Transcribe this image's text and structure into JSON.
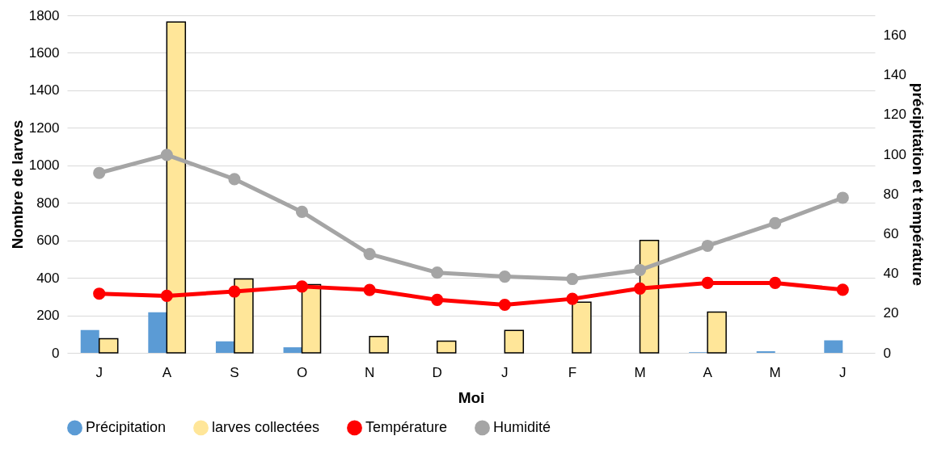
{
  "chart_data": {
    "type": "bar",
    "xlabel": "Moi",
    "ylabel": "Nombre de larves",
    "y2label": "précipitation et température",
    "categories": [
      "J",
      "A",
      "S",
      "O",
      "N",
      "D",
      "J",
      "F",
      "M",
      "A",
      "M",
      "J"
    ],
    "series": [
      {
        "name": "Précipitation",
        "axis": "y2",
        "color": "#5b9bd5",
        "values": [
          11.5,
          20.4,
          5.8,
          2.8,
          0,
          0,
          0,
          0,
          0,
          0.3,
          0.8,
          6.3
        ]
      },
      {
        "name": "larves collectées",
        "color": "#ffe699",
        "values": [
          75,
          1765,
          394,
          364,
          87,
          62,
          119,
          270,
          600,
          218,
          0,
          0
        ]
      },
      {
        "name": "Température",
        "type": "line",
        "axis": "y2",
        "color": "#ff0000",
        "values": [
          29.8,
          28.7,
          30.9,
          33.4,
          31.7,
          26.7,
          24.2,
          27.2,
          32.4,
          35.2,
          35.2,
          31.8
        ]
      },
      {
        "name": "Humidité",
        "type": "line",
        "axis": "y2",
        "color": "#a5a5a5",
        "values": [
          90.6,
          99.7,
          87.5,
          71,
          49.8,
          40.4,
          38.4,
          37.2,
          41.7,
          53.9,
          65.3,
          78.1
        ]
      }
    ],
    "ylim": [
      0,
      1800
    ],
    "yticks": [
      0,
      200,
      400,
      600,
      800,
      1000,
      1200,
      1400,
      1600,
      1800
    ],
    "y2lim": [
      0,
      170
    ],
    "y2ticks": [
      0,
      20,
      40,
      60,
      80,
      100,
      120,
      140,
      160
    ],
    "grid": "y",
    "legend": "bottom",
    "marker": "circle"
  }
}
